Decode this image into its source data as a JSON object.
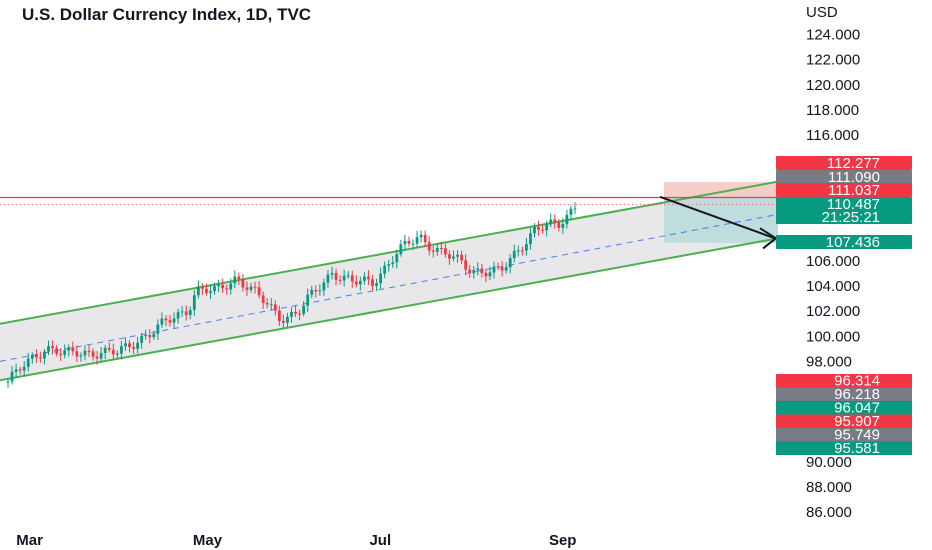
{
  "chart_data": {
    "type": "candlestick",
    "title": "U.S. Dollar Currency Index, 1D, TVC",
    "currency": "USD",
    "ylim": [
      85,
      126
    ],
    "y_ticks": [
      "124.000",
      "122.000",
      "120.000",
      "118.000",
      "116.000",
      "106.000",
      "104.000",
      "102.000",
      "100.000",
      "98.000",
      "90.000",
      "88.000",
      "86.000"
    ],
    "x_ticks": [
      "Mar",
      "May",
      "Jul",
      "Sep"
    ],
    "price_labels": [
      {
        "text": "112.277",
        "value": 112.277,
        "color": "#f23645"
      },
      {
        "text": "111.090",
        "value": 111.09,
        "color": "#787b86"
      },
      {
        "text": "111.037",
        "value": 111.037,
        "color": "#f23645"
      },
      {
        "text": "110.487",
        "value": 110.487,
        "color": "#089981"
      },
      {
        "text": "21:25:21",
        "value": 110.487,
        "color": "#089981"
      },
      {
        "text": "107.436",
        "value": 107.436,
        "color": "#089981"
      }
    ],
    "stacked_labels": [
      {
        "text": "96.314",
        "color": "#f23645"
      },
      {
        "text": "96.218",
        "color": "#787b86"
      },
      {
        "text": "96.047",
        "color": "#089981"
      },
      {
        "text": "95.907",
        "color": "#f23645"
      },
      {
        "text": "95.749",
        "color": "#787b86"
      },
      {
        "text": "95.581",
        "color": "#089981"
      }
    ],
    "horizontal_line": 111.037,
    "last_price": 110.487,
    "channel": {
      "upper_start": 101.0,
      "upper_end": 112.3,
      "lower_start": 96.5,
      "lower_end": 107.8,
      "mid_start": 98.0,
      "mid_end": 109.7
    },
    "position": {
      "entry": 111.09,
      "stop": 112.277,
      "target": 107.436
    },
    "anchor_points": [
      [
        "2022-02-22",
        96.4
      ],
      [
        "2022-03-07",
        99.2
      ],
      [
        "2022-03-14",
        98.5
      ],
      [
        "2022-03-23",
        98.8
      ],
      [
        "2022-04-01",
        98.6
      ],
      [
        "2022-04-08",
        99.8
      ],
      [
        "2022-04-14",
        100.5
      ],
      [
        "2022-04-25",
        102.2
      ],
      [
        "2022-04-28",
        103.7
      ],
      [
        "2022-05-05",
        103.5
      ],
      [
        "2022-05-12",
        104.8
      ],
      [
        "2022-05-20",
        103.0
      ],
      [
        "2022-05-27",
        101.6
      ],
      [
        "2022-06-02",
        101.8
      ],
      [
        "2022-06-14",
        105.2
      ],
      [
        "2022-06-21",
        104.2
      ],
      [
        "2022-06-28",
        104.4
      ],
      [
        "2022-07-06",
        106.5
      ],
      [
        "2022-07-14",
        108.0
      ],
      [
        "2022-07-22",
        106.6
      ],
      [
        "2022-08-01",
        105.4
      ],
      [
        "2022-08-11",
        105.0
      ],
      [
        "2022-08-19",
        107.5
      ],
      [
        "2022-08-23",
        108.5
      ],
      [
        "2022-08-31",
        108.8
      ],
      [
        "2022-09-06",
        110.5
      ]
    ]
  }
}
